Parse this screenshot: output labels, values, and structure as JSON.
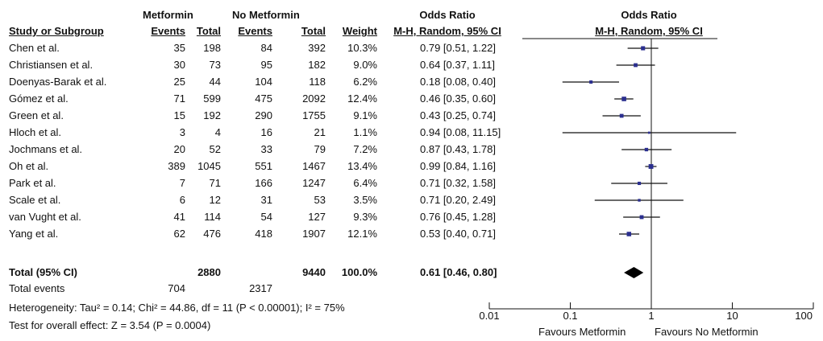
{
  "header": {
    "group1": "Metformin",
    "group2": "No Metformin",
    "or_title_left": "Odds Ratio",
    "or_title_right": "Odds Ratio",
    "col_study": "Study or Subgroup",
    "col_events1": "Events",
    "col_total1": "Total",
    "col_events2": "Events",
    "col_total2": "Total",
    "col_weight": "Weight",
    "col_method_left": "M-H, Random, 95% CI",
    "col_method_right": "M-H, Random, 95% CI"
  },
  "chart_data": {
    "type": "forest",
    "x_scale": "log",
    "xlim": [
      0.01,
      100
    ],
    "x_ticks": [
      "0.01",
      "0.1",
      "1",
      "10",
      "100"
    ],
    "favours_left": "Favours Metformin",
    "favours_right": "Favours No Metformin",
    "studies": [
      {
        "name": "Chen et al.",
        "events1": "35",
        "total1": "198",
        "events2": "84",
        "total2": "392",
        "weight": "10.3%",
        "ci_text": "0.79 [0.51, 1.22]",
        "or": 0.79,
        "lo": 0.51,
        "hi": 1.22
      },
      {
        "name": "Christiansen et al.",
        "events1": "30",
        "total1": "73",
        "events2": "95",
        "total2": "182",
        "weight": "9.0%",
        "ci_text": "0.64 [0.37, 1.11]",
        "or": 0.64,
        "lo": 0.37,
        "hi": 1.11
      },
      {
        "name": "Doenyas-Barak et al.",
        "events1": "25",
        "total1": "44",
        "events2": "104",
        "total2": "118",
        "weight": "6.2%",
        "ci_text": "0.18 [0.08, 0.40]",
        "or": 0.18,
        "lo": 0.08,
        "hi": 0.4
      },
      {
        "name": "Gómez et al.",
        "events1": "71",
        "total1": "599",
        "events2": "475",
        "total2": "2092",
        "weight": "12.4%",
        "ci_text": "0.46 [0.35, 0.60]",
        "or": 0.46,
        "lo": 0.35,
        "hi": 0.6
      },
      {
        "name": "Green et al.",
        "events1": "15",
        "total1": "192",
        "events2": "290",
        "total2": "1755",
        "weight": "9.1%",
        "ci_text": "0.43 [0.25, 0.74]",
        "or": 0.43,
        "lo": 0.25,
        "hi": 0.74
      },
      {
        "name": "Hloch et al.",
        "events1": "3",
        "total1": "4",
        "events2": "16",
        "total2": "21",
        "weight": "1.1%",
        "ci_text": "0.94 [0.08, 11.15]",
        "or": 0.94,
        "lo": 0.08,
        "hi": 11.15
      },
      {
        "name": "Jochmans et al.",
        "events1": "20",
        "total1": "52",
        "events2": "33",
        "total2": "79",
        "weight": "7.2%",
        "ci_text": "0.87 [0.43, 1.78]",
        "or": 0.87,
        "lo": 0.43,
        "hi": 1.78
      },
      {
        "name": "Oh et al.",
        "events1": "389",
        "total1": "1045",
        "events2": "551",
        "total2": "1467",
        "weight": "13.4%",
        "ci_text": "0.99 [0.84, 1.16]",
        "or": 0.99,
        "lo": 0.84,
        "hi": 1.16
      },
      {
        "name": "Park et al.",
        "events1": "7",
        "total1": "71",
        "events2": "166",
        "total2": "1247",
        "weight": "6.4%",
        "ci_text": "0.71 [0.32, 1.58]",
        "or": 0.71,
        "lo": 0.32,
        "hi": 1.58
      },
      {
        "name": "Scale et al.",
        "events1": "6",
        "total1": "12",
        "events2": "31",
        "total2": "53",
        "weight": "3.5%",
        "ci_text": "0.71 [0.20, 2.49]",
        "or": 0.71,
        "lo": 0.2,
        "hi": 2.49
      },
      {
        "name": "van Vught et al.",
        "events1": "41",
        "total1": "114",
        "events2": "54",
        "total2": "127",
        "weight": "9.3%",
        "ci_text": "0.76 [0.45, 1.28]",
        "or": 0.76,
        "lo": 0.45,
        "hi": 1.28
      },
      {
        "name": "Yang et al.",
        "events1": "62",
        "total1": "476",
        "events2": "418",
        "total2": "1907",
        "weight": "12.1%",
        "ci_text": "0.53 [0.40, 0.71]",
        "or": 0.53,
        "lo": 0.4,
        "hi": 0.71
      }
    ],
    "total": {
      "label": "Total (95% CI)",
      "total1": "2880",
      "total2": "9440",
      "weight": "100.0%",
      "ci_text": "0.61 [0.46, 0.80]",
      "or": 0.61,
      "lo": 0.46,
      "hi": 0.8
    },
    "total_events": {
      "label": "Total events",
      "events1": "704",
      "events2": "2317"
    },
    "heterogeneity": "Heterogeneity: Tau² = 0.14; Chi² = 44.86, df = 11 (P < 0.00001); I² = 75%",
    "overall_effect": "Test for overall effect: Z = 3.54 (P = 0.0004)",
    "colors": {
      "marker": "#2b2f8f",
      "line": "#111111",
      "diamond": "#000000"
    }
  }
}
